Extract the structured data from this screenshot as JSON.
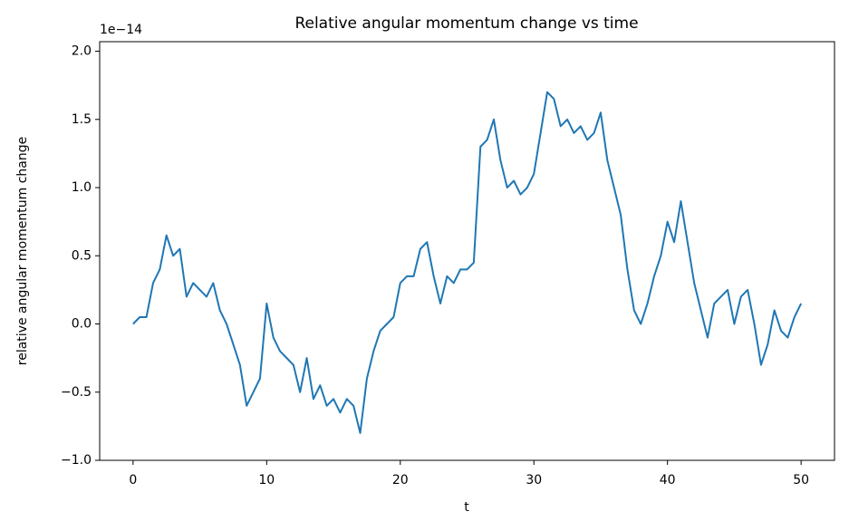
{
  "chart_data": {
    "type": "line",
    "title": "Relative angular momentum change vs time",
    "xlabel": "t",
    "ylabel": "relative angular momentum change",
    "y_offset_label": "1e−14",
    "x": [
      0,
      0.5,
      1,
      1.5,
      2,
      2.5,
      3,
      3.5,
      4,
      4.5,
      5,
      5.5,
      6,
      6.5,
      7,
      7.5,
      8,
      8.5,
      9,
      9.5,
      10,
      10.5,
      11,
      11.5,
      12,
      12.5,
      13,
      13.5,
      14,
      14.5,
      15,
      15.5,
      16,
      16.5,
      17,
      17.5,
      18,
      18.5,
      19,
      19.5,
      20,
      20.5,
      21,
      21.5,
      22,
      22.5,
      23,
      23.5,
      24,
      24.5,
      25,
      25.5,
      26,
      26.5,
      27,
      27.5,
      28,
      28.5,
      29,
      29.5,
      30,
      30.5,
      31,
      31.5,
      32,
      32.5,
      33,
      33.5,
      34,
      34.5,
      35,
      35.5,
      36,
      36.5,
      37,
      37.5,
      38,
      38.5,
      39,
      39.5,
      40,
      40.5,
      41,
      41.5,
      42,
      42.5,
      43,
      43.5,
      44,
      44.5,
      45,
      45.5,
      46,
      46.5,
      47,
      47.5,
      48,
      48.5,
      49,
      49.5,
      50
    ],
    "series": [
      {
        "color": "#1f77b4",
        "values": [
          0.0,
          0.05,
          0.05,
          0.3,
          0.4,
          0.65,
          0.5,
          0.55,
          0.2,
          0.3,
          0.25,
          0.2,
          0.3,
          0.1,
          0.0,
          -0.15,
          -0.3,
          -0.6,
          -0.5,
          -0.4,
          0.15,
          -0.1,
          -0.2,
          -0.25,
          -0.3,
          -0.5,
          -0.25,
          -0.55,
          -0.45,
          -0.6,
          -0.55,
          -0.65,
          -0.55,
          -0.6,
          -0.8,
          -0.4,
          -0.2,
          -0.05,
          0.0,
          0.05,
          0.3,
          0.35,
          0.35,
          0.55,
          0.6,
          0.35,
          0.15,
          0.35,
          0.3,
          0.4,
          0.4,
          0.45,
          1.3,
          1.35,
          1.5,
          1.2,
          1.0,
          1.05,
          0.95,
          1.0,
          1.1,
          1.4,
          1.7,
          1.65,
          1.45,
          1.5,
          1.4,
          1.45,
          1.35,
          1.4,
          1.55,
          1.2,
          1.0,
          0.8,
          0.4,
          0.1,
          0.0,
          0.15,
          0.35,
          0.5,
          0.75,
          0.6,
          0.9,
          0.6,
          0.3,
          0.1,
          -0.1,
          0.15,
          0.2,
          0.25,
          0.0,
          0.2,
          0.25,
          0.0,
          -0.3,
          -0.15,
          0.1,
          -0.05,
          -0.1,
          0.05,
          0.15
        ]
      }
    ],
    "xlim": [
      -2.5,
      52.5
    ],
    "ylim": [
      -1.0,
      2.07
    ],
    "xticks": [
      0,
      10,
      20,
      30,
      40,
      50
    ],
    "yticks": [
      {
        "value": -1,
        "label": "−1.0"
      },
      {
        "value": -0.5,
        "label": "−0.5"
      },
      {
        "value": 0,
        "label": "0.0"
      },
      {
        "value": 0.5,
        "label": "0.5"
      },
      {
        "value": 1,
        "label": "1.0"
      },
      {
        "value": 1.5,
        "label": "1.5"
      },
      {
        "value": 2,
        "label": "2.0"
      }
    ],
    "grid": false
  }
}
